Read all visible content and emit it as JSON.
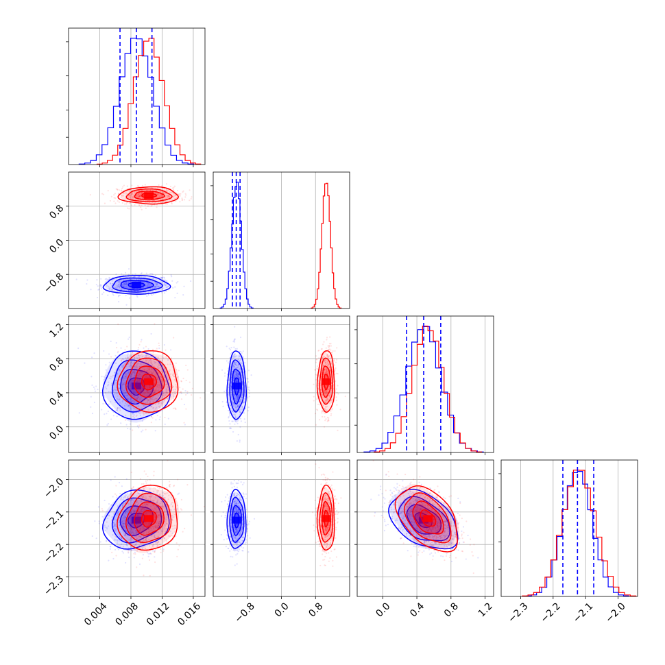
{
  "chart_data": {
    "type": "corner",
    "n_params": 4,
    "series": [
      {
        "color": "#0000ff",
        "means": [
          0.0087,
          -1.05,
          0.48,
          -2.125
        ],
        "sigmas": [
          0.0021,
          0.11,
          0.2,
          0.045
        ],
        "correlations": [
          [
            0,
            3,
            0.15
          ],
          [
            2,
            3,
            -0.4
          ]
        ],
        "quantile_lines": true
      },
      {
        "color": "#ff0000",
        "means": [
          0.0103,
          1.05,
          0.53,
          -2.12
        ],
        "sigmas": [
          0.0019,
          0.1,
          0.18,
          0.05
        ],
        "correlations": [
          [
            0,
            3,
            0.1
          ],
          [
            2,
            3,
            -0.45
          ]
        ],
        "quantile_lines": false
      }
    ],
    "quantiles": {
      "param_0": [
        0.0066,
        0.0087,
        0.0107
      ],
      "param_1": [
        -1.15,
        -1.06,
        -0.97
      ],
      "param_2": [
        0.28,
        0.48,
        0.68
      ],
      "param_3": [
        -2.17,
        -2.125,
        -2.075
      ]
    },
    "axes": [
      {
        "range": [
          0.0,
          0.0175
        ],
        "ticks": [
          0.004,
          0.008,
          0.012,
          0.016
        ],
        "tick_labels": [
          "0.004",
          "0.008",
          "0.012",
          "0.016"
        ]
      },
      {
        "range": [
          -1.6,
          1.6
        ],
        "ticks": [
          -0.8,
          0.0,
          0.8
        ],
        "tick_labels": [
          "−0.8",
          "0.0",
          "0.8"
        ]
      },
      {
        "range": [
          -0.3,
          1.3
        ],
        "ticks": [
          0.0,
          0.4,
          0.8,
          1.2
        ],
        "tick_labels": [
          "0.0",
          "0.4",
          "0.8",
          "1.2"
        ]
      },
      {
        "range": [
          -2.36,
          -1.94
        ],
        "ticks": [
          -2.3,
          -2.2,
          -2.1,
          -2.0
        ],
        "tick_labels": [
          "−2.3",
          "−2.2",
          "−2.1",
          "−2.0"
        ]
      }
    ],
    "histogram_bins": 20,
    "grid": true,
    "contour_levels_sigma": [
      0.5,
      1.0,
      1.5,
      2.0
    ]
  }
}
